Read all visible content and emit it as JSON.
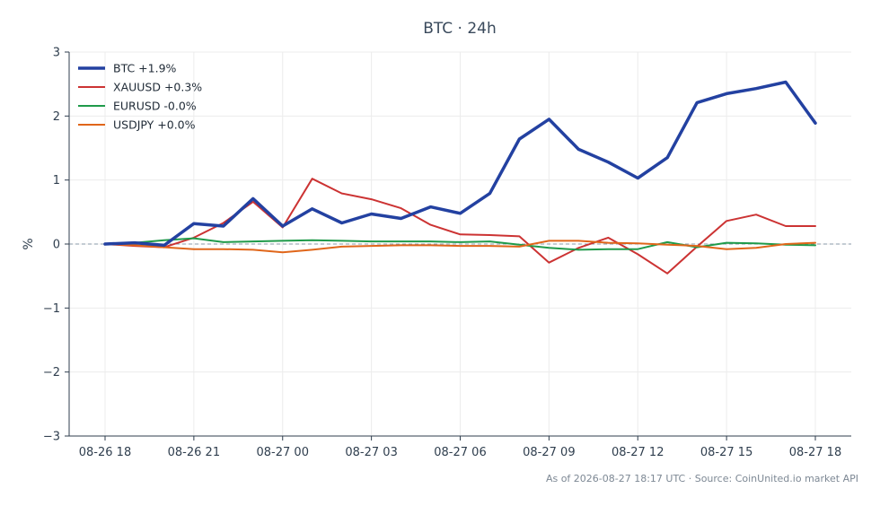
{
  "chart_data": {
    "type": "line",
    "title": "BTC · 24h",
    "xlabel": "",
    "ylabel": "%",
    "ylim": [
      -3,
      3
    ],
    "yticks": [
      3,
      2,
      1,
      0,
      -1,
      -2,
      -3
    ],
    "ytick_labels": [
      "3",
      "2",
      "1",
      "0",
      "−1",
      "−2",
      "−3"
    ],
    "xticks": [
      {
        "x": 0,
        "label": "08-26 18"
      },
      {
        "x": 3,
        "label": "08-26 21"
      },
      {
        "x": 6,
        "label": "08-27 00"
      },
      {
        "x": 9,
        "label": "08-27 03"
      },
      {
        "x": 12,
        "label": "08-27 06"
      },
      {
        "x": 15,
        "label": "08-27 09"
      },
      {
        "x": 18,
        "label": "08-27 12"
      },
      {
        "x": 21,
        "label": "08-27 15"
      },
      {
        "x": 24,
        "label": "08-27 18"
      }
    ],
    "x": [
      0,
      1,
      2,
      3,
      4,
      5,
      6,
      7,
      8,
      9,
      10,
      11,
      12,
      13,
      14,
      15,
      16,
      17,
      18,
      19,
      20,
      21,
      22,
      23,
      24
    ],
    "grid": true,
    "zero_line": "dashed",
    "legend_position": "top-left",
    "series": [
      {
        "name": "BTC +1.9%",
        "color": "#2341a1",
        "width": 3.5,
        "values": [
          0.0,
          0.02,
          -0.02,
          0.32,
          0.28,
          0.71,
          0.28,
          0.55,
          0.33,
          0.47,
          0.4,
          0.58,
          0.48,
          0.79,
          1.64,
          1.95,
          1.48,
          1.28,
          1.03,
          1.35,
          2.21,
          2.35,
          2.43,
          2.53,
          1.89
        ]
      },
      {
        "name": "XAUUSD +0.3%",
        "color": "#cc3333",
        "width": 2,
        "values": [
          0.0,
          -0.03,
          -0.05,
          0.1,
          0.33,
          0.66,
          0.26,
          1.02,
          0.79,
          0.7,
          0.56,
          0.3,
          0.15,
          0.14,
          0.12,
          -0.29,
          -0.06,
          0.1,
          -0.16,
          -0.46,
          -0.04,
          0.36,
          0.46,
          0.28,
          0.28
        ]
      },
      {
        "name": "EURUSD -0.0%",
        "color": "#1f9a4a",
        "width": 2,
        "values": [
          0.0,
          0.02,
          0.06,
          0.09,
          0.03,
          0.04,
          0.05,
          0.06,
          0.05,
          0.04,
          0.04,
          0.04,
          0.03,
          0.04,
          -0.01,
          -0.06,
          -0.09,
          -0.08,
          -0.08,
          0.03,
          -0.05,
          0.02,
          0.01,
          -0.01,
          -0.02
        ]
      },
      {
        "name": "USDJPY +0.0%",
        "color": "#e0661a",
        "width": 2,
        "values": [
          0.0,
          -0.02,
          -0.05,
          -0.08,
          -0.08,
          -0.09,
          -0.13,
          -0.09,
          -0.04,
          -0.03,
          -0.02,
          -0.02,
          -0.03,
          -0.03,
          -0.04,
          0.05,
          0.05,
          0.02,
          0.01,
          -0.01,
          -0.03,
          -0.08,
          -0.06,
          0.0,
          0.02
        ]
      }
    ]
  },
  "footer": {
    "text": "As of 2026-08-27 18:17 UTC · Source: CoinUnited.io market API"
  }
}
